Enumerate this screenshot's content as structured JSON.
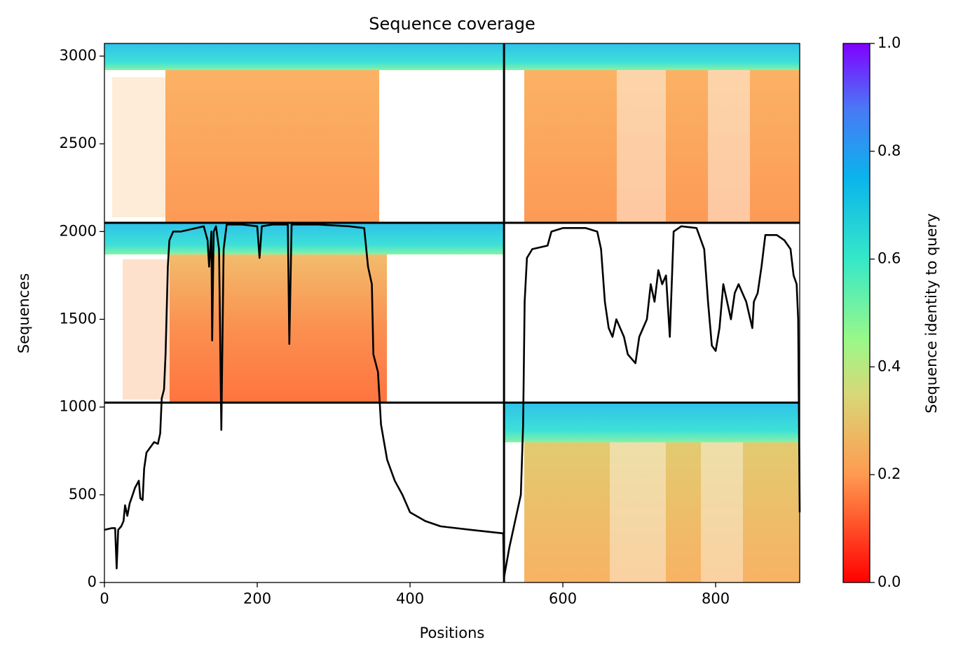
{
  "chart_data": {
    "type": "line",
    "title": "Sequence coverage",
    "x_label": "Positions",
    "y_label": "Sequences",
    "colorbar_label": "Sequence identity to query",
    "xlim": [
      0,
      910
    ],
    "ylim": [
      0,
      3072
    ],
    "xticks": [
      0,
      200,
      400,
      600,
      800
    ],
    "yticks": [
      0,
      500,
      1000,
      1500,
      2000,
      2500,
      3000
    ],
    "clim": [
      0,
      1
    ],
    "cticks": [
      {
        "value": 0,
        "label": "0.0"
      },
      {
        "value": 0.2,
        "label": "0.2"
      },
      {
        "value": 0.4,
        "label": "0.4"
      },
      {
        "value": 0.6,
        "label": "0.6"
      },
      {
        "value": 0.8,
        "label": "0.8"
      },
      {
        "value": 1,
        "label": "1.0"
      }
    ],
    "chain_breaks": [
      523
    ],
    "row_breaks": [
      1025,
      2050
    ],
    "series": [
      {
        "name": "coverage",
        "color": "#000000",
        "x": [
          0,
          10,
          14,
          16,
          18,
          22,
          25,
          27,
          30,
          33,
          37,
          40,
          45,
          47,
          50,
          52,
          55,
          60,
          65,
          70,
          73,
          75,
          78,
          80,
          83,
          85,
          90,
          100,
          120,
          130,
          135,
          137,
          140,
          141,
          143,
          146,
          150,
          153,
          156,
          160,
          180,
          200,
          203,
          206,
          220,
          240,
          242,
          245,
          280,
          320,
          340,
          345,
          350,
          352,
          358,
          362,
          370,
          380,
          390,
          400,
          420,
          440,
          480,
          522,
          523,
          530,
          535,
          540,
          545,
          548,
          550,
          553,
          560,
          580,
          585,
          600,
          630,
          645,
          650,
          655,
          660,
          665,
          670,
          675,
          680,
          685,
          695,
          700,
          710,
          715,
          720,
          725,
          730,
          735,
          740,
          745,
          755,
          775,
          785,
          790,
          795,
          800,
          805,
          810,
          820,
          825,
          830,
          840,
          848,
          850,
          855,
          860,
          865,
          880,
          890,
          898,
          902,
          906,
          908,
          910
        ],
        "values": [
          300,
          310,
          310,
          80,
          300,
          320,
          350,
          440,
          380,
          450,
          500,
          540,
          580,
          480,
          470,
          650,
          740,
          770,
          800,
          790,
          850,
          1050,
          1100,
          1300,
          1800,
          1950,
          2000,
          2000,
          2020,
          2030,
          1950,
          1800,
          2000,
          1380,
          2000,
          2030,
          1900,
          870,
          1900,
          2040,
          2040,
          2030,
          1850,
          2030,
          2040,
          2040,
          1360,
          2040,
          2040,
          2030,
          2020,
          1800,
          1700,
          1300,
          1200,
          900,
          700,
          580,
          500,
          400,
          350,
          320,
          300,
          280,
          30,
          200,
          300,
          400,
          500,
          900,
          1600,
          1850,
          1900,
          1920,
          2000,
          2020,
          2020,
          2000,
          1900,
          1600,
          1450,
          1400,
          1500,
          1450,
          1400,
          1300,
          1250,
          1400,
          1500,
          1700,
          1600,
          1780,
          1700,
          1750,
          1400,
          2000,
          2030,
          2020,
          1900,
          1600,
          1350,
          1320,
          1450,
          1700,
          1500,
          1650,
          1700,
          1600,
          1450,
          1600,
          1650,
          1800,
          1980,
          1980,
          1950,
          1900,
          1750,
          1700,
          1500,
          400
        ]
      }
    ]
  }
}
